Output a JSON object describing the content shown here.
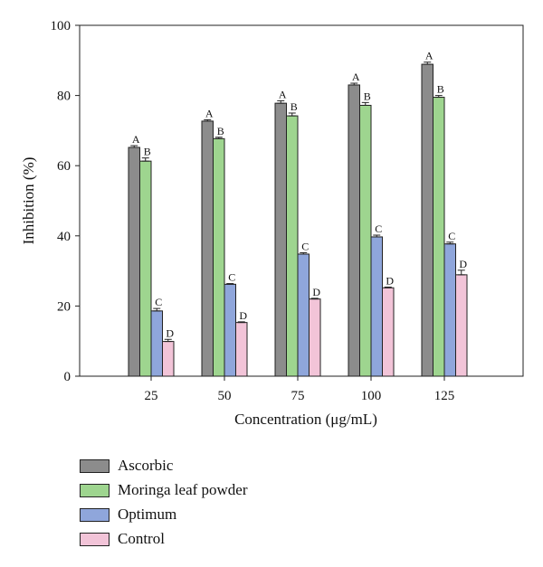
{
  "chart_data": {
    "type": "bar",
    "title": "",
    "xlabel": "Concentration (μg/mL)",
    "ylabel": "Inhibition (%)",
    "ylim": [
      0,
      100
    ],
    "yticks": [
      "0",
      "20",
      "40",
      "60",
      "80",
      "100"
    ],
    "categories": [
      "25",
      "50",
      "75",
      "100",
      "125"
    ],
    "legend_position": "below",
    "series": [
      {
        "name": "Ascorbic",
        "color": "#8c8c8c",
        "values": [
          65.2,
          72.7,
          77.8,
          83.0,
          88.9
        ],
        "errors": [
          0.5,
          0.4,
          0.7,
          0.5,
          0.6
        ],
        "labels": [
          "A",
          "A",
          "A",
          "A",
          "A"
        ]
      },
      {
        "name": "Moringa leaf powder",
        "color": "#9ed58f",
        "values": [
          61.3,
          67.7,
          74.2,
          77.2,
          79.5
        ],
        "errors": [
          0.9,
          0.4,
          0.8,
          0.8,
          0.5
        ],
        "labels": [
          "B",
          "B",
          "B",
          "B",
          "B"
        ]
      },
      {
        "name": "Optimum",
        "color": "#8fa6db",
        "values": [
          18.6,
          26.2,
          34.8,
          39.7,
          37.7
        ],
        "errors": [
          0.7,
          0.2,
          0.4,
          0.5,
          0.5
        ],
        "labels": [
          "C",
          "C",
          "C",
          "C",
          "C"
        ]
      },
      {
        "name": "Control",
        "color": "#f2c4d8",
        "values": [
          9.9,
          15.3,
          22.0,
          25.2,
          28.9
        ],
        "errors": [
          0.6,
          0.2,
          0.2,
          0.2,
          1.3
        ],
        "labels": [
          "D",
          "D",
          "D",
          "D",
          "D"
        ]
      }
    ]
  }
}
